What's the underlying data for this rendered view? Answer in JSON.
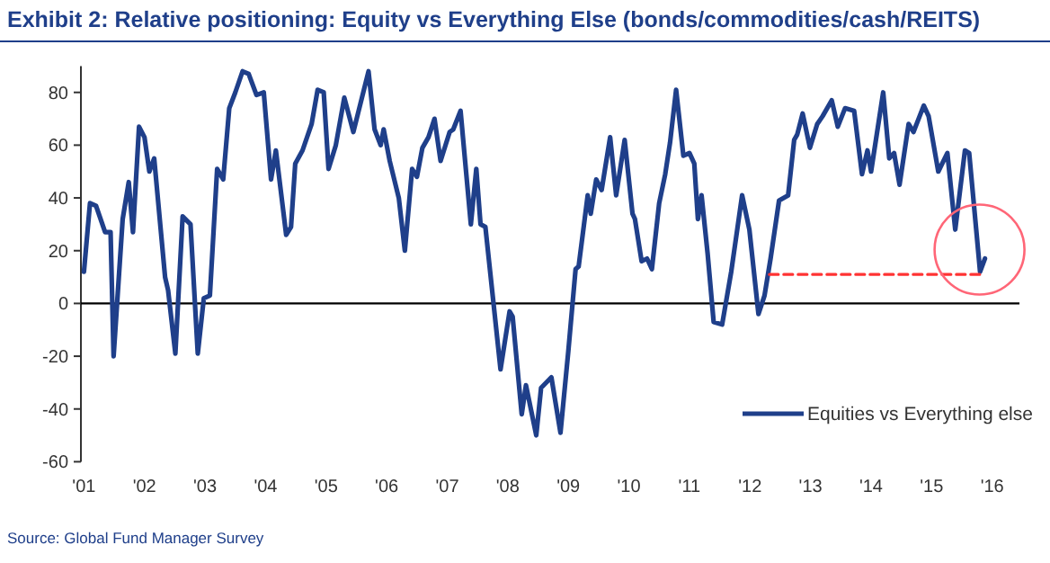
{
  "chart_data": {
    "type": "line",
    "title": "Exhibit 2: Relative positioning: Equity vs Everything Else (bonds/commodities/cash/REITS)",
    "annotations": [
      "Source: Global Fund Manager Survey"
    ],
    "xlim": [
      2000.95,
      2016.45
    ],
    "xticks": [
      {
        "value": 2001,
        "label": "'01"
      },
      {
        "value": 2002,
        "label": "'02"
      },
      {
        "value": 2003,
        "label": "'03"
      },
      {
        "value": 2004,
        "label": "'04"
      },
      {
        "value": 2005,
        "label": "'05"
      },
      {
        "value": 2006,
        "label": "'06"
      },
      {
        "value": 2007,
        "label": "'07"
      },
      {
        "value": 2008,
        "label": "'08"
      },
      {
        "value": 2009,
        "label": "'09"
      },
      {
        "value": 2010,
        "label": "'10"
      },
      {
        "value": 2011,
        "label": "'11"
      },
      {
        "value": 2012,
        "label": "'12"
      },
      {
        "value": 2013,
        "label": "'13"
      },
      {
        "value": 2014,
        "label": "'14"
      },
      {
        "value": 2015,
        "label": "'15"
      },
      {
        "value": 2016,
        "label": "'16"
      }
    ],
    "ylim": [
      -60,
      90
    ],
    "yticks": [
      -60,
      -40,
      -20,
      0,
      20,
      40,
      60,
      80
    ],
    "grid": false,
    "legend": "bottom right",
    "marker": "none",
    "line_style": "solid",
    "ref_lines": [
      {
        "axis": "y",
        "value": 0,
        "color": "#000000"
      }
    ],
    "series": [
      {
        "name": "Equities vs Everything else",
        "color": "#1f3f8a",
        "x": [
          2001.0,
          2001.1,
          2001.2,
          2001.35,
          2001.44,
          2001.49,
          2001.64,
          2001.74,
          2001.81,
          2001.91,
          2002.0,
          2002.08,
          2002.16,
          2002.34,
          2002.39,
          2002.51,
          2002.63,
          2002.76,
          2002.88,
          2002.98,
          2003.08,
          2003.2,
          2003.3,
          2003.4,
          2003.5,
          2003.62,
          2003.72,
          2003.85,
          2003.97,
          2004.09,
          2004.17,
          2004.34,
          2004.42,
          2004.49,
          2004.61,
          2004.76,
          2004.86,
          2004.96,
          2005.04,
          2005.16,
          2005.3,
          2005.45,
          2005.7,
          2005.8,
          2005.9,
          2005.95,
          2006.05,
          2006.2,
          2006.3,
          2006.42,
          2006.5,
          2006.59,
          2006.69,
          2006.79,
          2006.89,
          2007.04,
          2007.1,
          2007.22,
          2007.39,
          2007.48,
          2007.55,
          2007.63,
          2007.76,
          2007.88,
          2008.03,
          2008.08,
          2008.23,
          2008.3,
          2008.47,
          2008.55,
          2008.72,
          2008.87,
          2009.0,
          2009.12,
          2009.17,
          2009.32,
          2009.37,
          2009.46,
          2009.55,
          2009.69,
          2009.79,
          2009.93,
          2010.06,
          2010.1,
          2010.21,
          2010.3,
          2010.38,
          2010.5,
          2010.6,
          2010.68,
          2010.78,
          2010.9,
          2011.0,
          2011.08,
          2011.14,
          2011.2,
          2011.3,
          2011.4,
          2011.54,
          2011.69,
          2011.87,
          2011.99,
          2012.14,
          2012.24,
          2012.34,
          2012.48,
          2012.63,
          2012.73,
          2012.78,
          2012.87,
          2012.99,
          2013.11,
          2013.2,
          2013.35,
          2013.45,
          2013.57,
          2013.72,
          2013.85,
          2013.94,
          2014.0,
          2014.2,
          2014.3,
          2014.38,
          2014.47,
          2014.62,
          2014.7,
          2014.87,
          2014.95,
          2015.11,
          2015.26,
          2015.39,
          2015.55,
          2015.62,
          2015.8,
          2015.88
        ],
        "values": [
          12,
          38,
          37,
          27,
          27,
          -20,
          32,
          46,
          27,
          67,
          63,
          50,
          55,
          10,
          5,
          -19,
          33,
          30,
          -19,
          2,
          3,
          51,
          47,
          74,
          80,
          88,
          87,
          79,
          80,
          47,
          58,
          26,
          29,
          53,
          58,
          68,
          81,
          80,
          51,
          60,
          78,
          65,
          88,
          66,
          60,
          66,
          54,
          40,
          20,
          51,
          48,
          59,
          63,
          70,
          54,
          65,
          66,
          73,
          30,
          51,
          30,
          29,
          1,
          -25,
          -3,
          -5,
          -42,
          -31,
          -50,
          -32,
          -28,
          -49,
          -18,
          13,
          14,
          41,
          34,
          47,
          43,
          63,
          41,
          62,
          34,
          32,
          16,
          17,
          13,
          38,
          49,
          61,
          81,
          56,
          57,
          53,
          32,
          41,
          19,
          -7,
          -8,
          12,
          41,
          28,
          -4,
          3,
          17,
          39,
          41,
          62,
          64,
          72,
          59,
          68,
          71,
          77,
          67,
          74,
          73,
          49,
          58,
          50,
          80,
          55,
          57,
          45,
          68,
          65,
          75,
          71,
          50,
          57,
          28,
          58,
          57,
          12,
          17
        ]
      },
      {
        "type": "line",
        "color": "#ff3333",
        "line_style": "dashed",
        "x": [
          2012.32,
          2015.8
        ],
        "values": [
          11,
          11
        ]
      }
    ]
  }
}
